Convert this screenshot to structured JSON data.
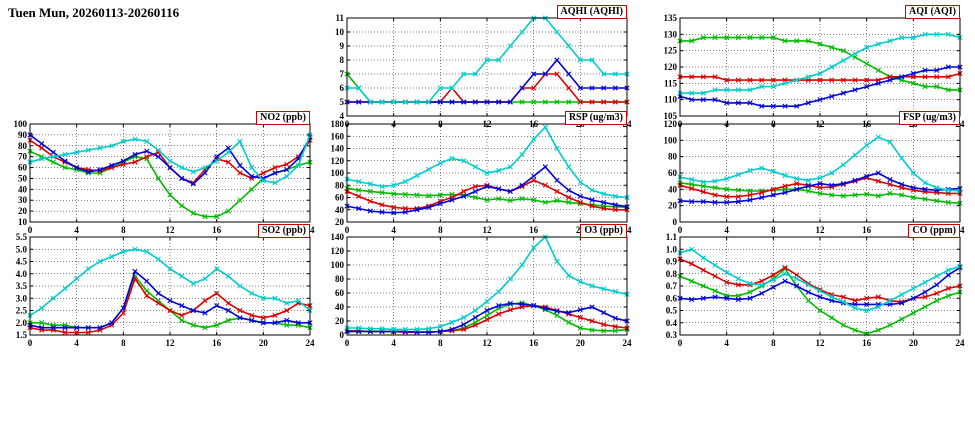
{
  "page_title": "Tuen Mun, 20260113-20260116",
  "palette": [
    "#00bb00",
    "#dd0000",
    "#0000dd",
    "#00cccc"
  ],
  "chart_data": [
    {
      "type": "line",
      "title": "AQHI (AQHI)",
      "xlabel": "",
      "ylabel": "",
      "xlim": [
        0,
        24
      ],
      "xtick_step": 4,
      "ylim": [
        4,
        11
      ],
      "ytick_step": 1,
      "grid": true,
      "legend": "none",
      "x_step_hours": 1,
      "series": [
        {
          "name": "series-green",
          "values": [
            7,
            6,
            5,
            5,
            5,
            5,
            5,
            5,
            5,
            5,
            5,
            5,
            5,
            5,
            5,
            5,
            5,
            5,
            5,
            5,
            5,
            5,
            5,
            5,
            5
          ]
        },
        {
          "name": "series-red",
          "values": [
            5,
            5,
            5,
            5,
            5,
            5,
            5,
            5,
            5,
            6,
            5,
            5,
            5,
            5,
            5,
            6,
            6,
            7,
            7,
            6,
            5,
            5,
            5,
            5,
            5
          ]
        },
        {
          "name": "series-blue",
          "values": [
            5,
            5,
            5,
            5,
            5,
            5,
            5,
            5,
            5,
            5,
            5,
            5,
            5,
            5,
            5,
            6,
            7,
            7,
            8,
            7,
            6,
            6,
            6,
            6,
            6
          ]
        },
        {
          "name": "series-cyan",
          "values": [
            6,
            6,
            5,
            5,
            5,
            5,
            5,
            5,
            6,
            6,
            7,
            7,
            8,
            8,
            9,
            10,
            11,
            11,
            10,
            9,
            8,
            8,
            7,
            7,
            7
          ]
        }
      ]
    },
    {
      "type": "line",
      "title": "AQI (AQI)",
      "xlabel": "",
      "ylabel": "",
      "xlim": [
        0,
        24
      ],
      "xtick_step": 4,
      "ylim": [
        105,
        135
      ],
      "ytick_step": 5,
      "grid": true,
      "legend": "none",
      "x_step_hours": 1,
      "series": [
        {
          "name": "series-green",
          "values": [
            128,
            128,
            129,
            129,
            129,
            129,
            129,
            129,
            129,
            128,
            128,
            128,
            127,
            126,
            125,
            123,
            121,
            119,
            117,
            116,
            115,
            114,
            114,
            113,
            113
          ]
        },
        {
          "name": "series-red",
          "values": [
            117,
            117,
            117,
            117,
            116,
            116,
            116,
            116,
            116,
            116,
            116,
            116,
            116,
            116,
            116,
            116,
            116,
            116,
            117,
            117,
            117,
            117,
            117,
            117,
            118
          ]
        },
        {
          "name": "series-blue",
          "values": [
            111,
            110,
            110,
            110,
            109,
            109,
            109,
            108,
            108,
            108,
            108,
            109,
            110,
            111,
            112,
            113,
            114,
            115,
            116,
            117,
            118,
            119,
            119,
            120,
            120
          ]
        },
        {
          "name": "series-cyan",
          "values": [
            112,
            112,
            112,
            113,
            113,
            113,
            113,
            114,
            114,
            115,
            116,
            117,
            118,
            120,
            122,
            124,
            126,
            127,
            128,
            129,
            129,
            130,
            130,
            130,
            129
          ]
        }
      ]
    },
    {
      "type": "line",
      "title": "NO2 (ppb)",
      "xlabel": "",
      "ylabel": "",
      "xlim": [
        0,
        24
      ],
      "xtick_step": 4,
      "ylim": [
        10,
        100
      ],
      "ytick_step": 10,
      "grid": true,
      "legend": "none",
      "x_step_hours": 1,
      "series": [
        {
          "name": "series-green",
          "values": [
            75,
            70,
            65,
            60,
            58,
            55,
            55,
            60,
            65,
            70,
            68,
            50,
            35,
            25,
            18,
            15,
            15,
            20,
            30,
            40,
            50,
            55,
            58,
            62,
            65
          ]
        },
        {
          "name": "series-red",
          "values": [
            85,
            78,
            70,
            65,
            60,
            58,
            57,
            60,
            63,
            65,
            70,
            74,
            60,
            50,
            46,
            58,
            68,
            65,
            55,
            50,
            55,
            60,
            63,
            70,
            85
          ]
        },
        {
          "name": "series-blue",
          "values": [
            90,
            82,
            74,
            66,
            60,
            56,
            58,
            62,
            66,
            72,
            75,
            70,
            60,
            50,
            45,
            55,
            70,
            78,
            62,
            52,
            50,
            55,
            58,
            68,
            88
          ]
        },
        {
          "name": "series-cyan",
          "values": [
            65,
            68,
            70,
            72,
            74,
            76,
            78,
            80,
            84,
            86,
            84,
            76,
            66,
            60,
            56,
            60,
            66,
            74,
            84,
            60,
            48,
            46,
            52,
            62,
            90
          ]
        }
      ]
    },
    {
      "type": "line",
      "title": "RSP (ug/m3)",
      "xlabel": "",
      "ylabel": "",
      "xlim": [
        0,
        24
      ],
      "xtick_step": 4,
      "ylim": [
        20,
        180
      ],
      "ytick_step": 20,
      "grid": true,
      "legend": "none",
      "x_step_hours": 1,
      "series": [
        {
          "name": "series-green",
          "values": [
            75,
            72,
            70,
            68,
            66,
            65,
            64,
            63,
            64,
            65,
            64,
            60,
            56,
            58,
            55,
            58,
            56,
            52,
            55,
            52,
            50,
            48,
            46,
            45,
            44
          ]
        },
        {
          "name": "series-red",
          "values": [
            70,
            62,
            54,
            48,
            44,
            42,
            42,
            46,
            54,
            60,
            70,
            78,
            80,
            74,
            70,
            78,
            88,
            80,
            70,
            60,
            52,
            46,
            42,
            40,
            40
          ]
        },
        {
          "name": "series-blue",
          "values": [
            46,
            42,
            38,
            36,
            35,
            36,
            40,
            44,
            50,
            56,
            62,
            70,
            78,
            74,
            70,
            80,
            95,
            110,
            88,
            72,
            62,
            56,
            52,
            48,
            45
          ]
        },
        {
          "name": "series-cyan",
          "values": [
            90,
            86,
            82,
            78,
            80,
            86,
            96,
            106,
            116,
            124,
            120,
            110,
            100,
            104,
            110,
            130,
            155,
            175,
            140,
            110,
            85,
            72,
            66,
            62,
            60
          ]
        }
      ]
    },
    {
      "type": "line",
      "title": "FSP (ug/m3)",
      "xlabel": "",
      "ylabel": "",
      "xlim": [
        0,
        24
      ],
      "xtick_step": 4,
      "ylim": [
        0,
        120
      ],
      "ytick_step": 20,
      "grid": true,
      "legend": "none",
      "x_step_hours": 1,
      "series": [
        {
          "name": "series-green",
          "values": [
            48,
            46,
            44,
            42,
            40,
            39,
            38,
            38,
            39,
            40,
            40,
            38,
            35,
            33,
            32,
            33,
            34,
            32,
            35,
            33,
            30,
            28,
            26,
            24,
            23
          ]
        },
        {
          "name": "series-red",
          "values": [
            45,
            41,
            37,
            33,
            31,
            31,
            33,
            36,
            40,
            44,
            47,
            45,
            42,
            43,
            46,
            50,
            54,
            50,
            46,
            42,
            39,
            37,
            36,
            35,
            35
          ]
        },
        {
          "name": "series-blue",
          "values": [
            26,
            25,
            25,
            24,
            24,
            25,
            27,
            30,
            33,
            36,
            40,
            44,
            47,
            45,
            47,
            51,
            56,
            60,
            52,
            46,
            42,
            40,
            39,
            40,
            41
          ]
        },
        {
          "name": "series-cyan",
          "values": [
            55,
            52,
            49,
            50,
            53,
            58,
            63,
            66,
            62,
            57,
            53,
            51,
            54,
            60,
            70,
            82,
            94,
            104,
            98,
            78,
            60,
            48,
            42,
            39,
            38
          ]
        }
      ]
    },
    {
      "type": "line",
      "title": "SO2 (ppb)",
      "xlabel": "",
      "ylabel": "",
      "xlim": [
        0,
        24
      ],
      "xtick_step": 4,
      "ylim": [
        1.5,
        5.5
      ],
      "ytick_step": 0.5,
      "grid": true,
      "legend": "none",
      "x_step_hours": 1,
      "series": [
        {
          "name": "series-green",
          "values": [
            2.0,
            2.0,
            1.9,
            1.9,
            1.8,
            1.8,
            1.8,
            2.0,
            2.6,
            3.9,
            3.3,
            2.9,
            2.5,
            2.1,
            1.9,
            1.8,
            1.9,
            2.1,
            2.2,
            2.1,
            2.0,
            2.0,
            1.9,
            1.9,
            1.8
          ]
        },
        {
          "name": "series-red",
          "values": [
            1.8,
            1.7,
            1.7,
            1.6,
            1.6,
            1.6,
            1.7,
            1.9,
            2.4,
            3.8,
            3.1,
            2.8,
            2.5,
            2.3,
            2.5,
            2.9,
            3.2,
            2.8,
            2.5,
            2.3,
            2.2,
            2.3,
            2.5,
            2.8,
            2.7
          ]
        },
        {
          "name": "series-blue",
          "values": [
            1.9,
            1.8,
            1.8,
            1.8,
            1.8,
            1.8,
            1.8,
            2.0,
            2.6,
            4.1,
            3.7,
            3.2,
            2.9,
            2.7,
            2.5,
            2.4,
            2.7,
            2.5,
            2.2,
            2.1,
            2.0,
            2.0,
            2.1,
            2.0,
            2.0
          ]
        },
        {
          "name": "series-cyan",
          "values": [
            2.3,
            2.6,
            3.0,
            3.4,
            3.8,
            4.2,
            4.5,
            4.7,
            4.9,
            5.0,
            4.9,
            4.6,
            4.2,
            3.9,
            3.6,
            3.8,
            4.2,
            3.9,
            3.5,
            3.2,
            3.0,
            3.0,
            2.8,
            2.9,
            2.5
          ]
        }
      ]
    },
    {
      "type": "line",
      "title": "O3 (ppb)",
      "xlabel": "",
      "ylabel": "",
      "xlim": [
        0,
        24
      ],
      "xtick_step": 4,
      "ylim": [
        0,
        140
      ],
      "ytick_step": 20,
      "grid": true,
      "legend": "none",
      "x_step_hours": 1,
      "series": [
        {
          "name": "series-green",
          "values": [
            5,
            5,
            5,
            5,
            5,
            4,
            4,
            4,
            5,
            6,
            10,
            18,
            28,
            38,
            44,
            46,
            42,
            36,
            28,
            18,
            10,
            7,
            6,
            6,
            8
          ]
        },
        {
          "name": "series-red",
          "values": [
            6,
            6,
            5,
            5,
            5,
            4,
            4,
            4,
            5,
            6,
            8,
            14,
            22,
            30,
            36,
            40,
            42,
            40,
            35,
            30,
            25,
            20,
            15,
            12,
            10
          ]
        },
        {
          "name": "series-blue",
          "values": [
            5,
            5,
            5,
            5,
            5,
            5,
            4,
            4,
            5,
            8,
            15,
            25,
            35,
            42,
            45,
            44,
            42,
            38,
            34,
            32,
            36,
            40,
            32,
            24,
            20
          ]
        },
        {
          "name": "series-cyan",
          "values": [
            10,
            10,
            9,
            9,
            8,
            8,
            8,
            9,
            12,
            18,
            25,
            35,
            48,
            62,
            80,
            100,
            125,
            140,
            105,
            85,
            76,
            70,
            66,
            62,
            58
          ]
        }
      ]
    },
    {
      "type": "line",
      "title": "CO (ppm)",
      "xlabel": "",
      "ylabel": "",
      "xlim": [
        0,
        24
      ],
      "xtick_step": 4,
      "ylim": [
        0.3,
        1.1
      ],
      "ytick_step": 0.1,
      "grid": true,
      "legend": "none",
      "x_step_hours": 1,
      "series": [
        {
          "name": "series-green",
          "values": [
            0.78,
            0.74,
            0.7,
            0.66,
            0.62,
            0.62,
            0.65,
            0.7,
            0.76,
            0.84,
            0.7,
            0.58,
            0.5,
            0.44,
            0.38,
            0.34,
            0.31,
            0.34,
            0.38,
            0.43,
            0.48,
            0.53,
            0.58,
            0.62,
            0.65
          ]
        },
        {
          "name": "series-red",
          "values": [
            0.92,
            0.88,
            0.83,
            0.78,
            0.73,
            0.71,
            0.71,
            0.74,
            0.79,
            0.85,
            0.79,
            0.72,
            0.67,
            0.63,
            0.61,
            0.58,
            0.6,
            0.61,
            0.58,
            0.57,
            0.6,
            0.61,
            0.64,
            0.68,
            0.7
          ]
        },
        {
          "name": "series-blue",
          "values": [
            0.6,
            0.59,
            0.6,
            0.61,
            0.6,
            0.59,
            0.6,
            0.64,
            0.69,
            0.74,
            0.7,
            0.65,
            0.61,
            0.58,
            0.56,
            0.55,
            0.55,
            0.55,
            0.55,
            0.56,
            0.6,
            0.65,
            0.71,
            0.79,
            0.85
          ]
        },
        {
          "name": "series-cyan",
          "values": [
            0.97,
            1.0,
            0.93,
            0.87,
            0.81,
            0.76,
            0.72,
            0.71,
            0.75,
            0.8,
            0.76,
            0.71,
            0.66,
            0.61,
            0.57,
            0.52,
            0.5,
            0.53,
            0.58,
            0.63,
            0.68,
            0.73,
            0.78,
            0.83,
            0.86
          ]
        }
      ]
    }
  ]
}
